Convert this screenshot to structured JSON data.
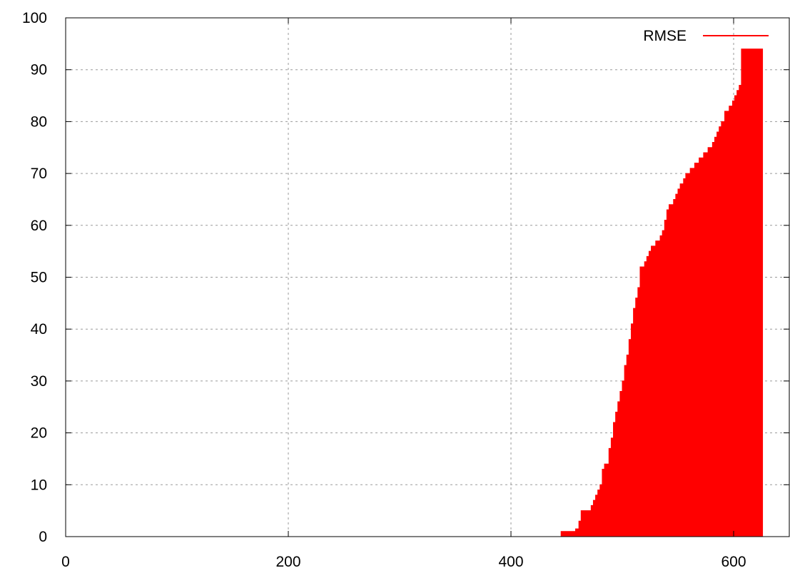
{
  "chart_data": {
    "type": "area",
    "title": "",
    "xlabel": "",
    "ylabel": "",
    "xlim": [
      0,
      650
    ],
    "ylim": [
      0,
      100
    ],
    "x_ticks": [
      0,
      200,
      400,
      600
    ],
    "y_ticks": [
      0,
      10,
      20,
      30,
      40,
      50,
      60,
      70,
      80,
      90,
      100
    ],
    "grid": true,
    "legend_position": "top-right",
    "series": [
      {
        "name": "RMSE",
        "color": "#ff0000",
        "step": true,
        "x": [
          445,
          455,
          458,
          461,
          463,
          470,
          472,
          474,
          476,
          478,
          480,
          482,
          484,
          486,
          488,
          490,
          492,
          494,
          496,
          498,
          500,
          502,
          504,
          506,
          508,
          510,
          512,
          514,
          516,
          518,
          520,
          522,
          524,
          526,
          530,
          532,
          534,
          536,
          538,
          540,
          542,
          544,
          546,
          548,
          550,
          552,
          555,
          557,
          559,
          561,
          563,
          565,
          567,
          569,
          571,
          573,
          575,
          577,
          579,
          581,
          583,
          585,
          587,
          589,
          592,
          596,
          599,
          601,
          603,
          605,
          607,
          609,
          611,
          613,
          615,
          617,
          619,
          621,
          623,
          625,
          626
        ],
        "y": [
          1,
          1,
          1.5,
          3,
          5,
          5,
          6,
          7,
          8,
          9,
          10,
          13,
          14,
          14,
          17,
          19,
          22,
          24,
          26,
          28,
          30,
          33,
          35,
          38,
          41,
          44,
          46,
          48,
          52,
          52,
          53,
          54,
          55,
          56,
          57,
          57,
          58,
          59,
          61,
          63,
          64,
          64,
          65,
          66,
          67,
          68,
          69,
          70,
          70,
          71,
          71,
          72,
          72,
          73,
          73,
          74,
          74,
          75,
          75,
          76,
          77,
          78,
          79,
          80,
          82,
          83,
          84,
          85,
          86,
          87,
          94,
          94,
          94,
          94,
          94,
          94,
          94,
          94,
          94,
          94,
          94
        ]
      }
    ]
  }
}
